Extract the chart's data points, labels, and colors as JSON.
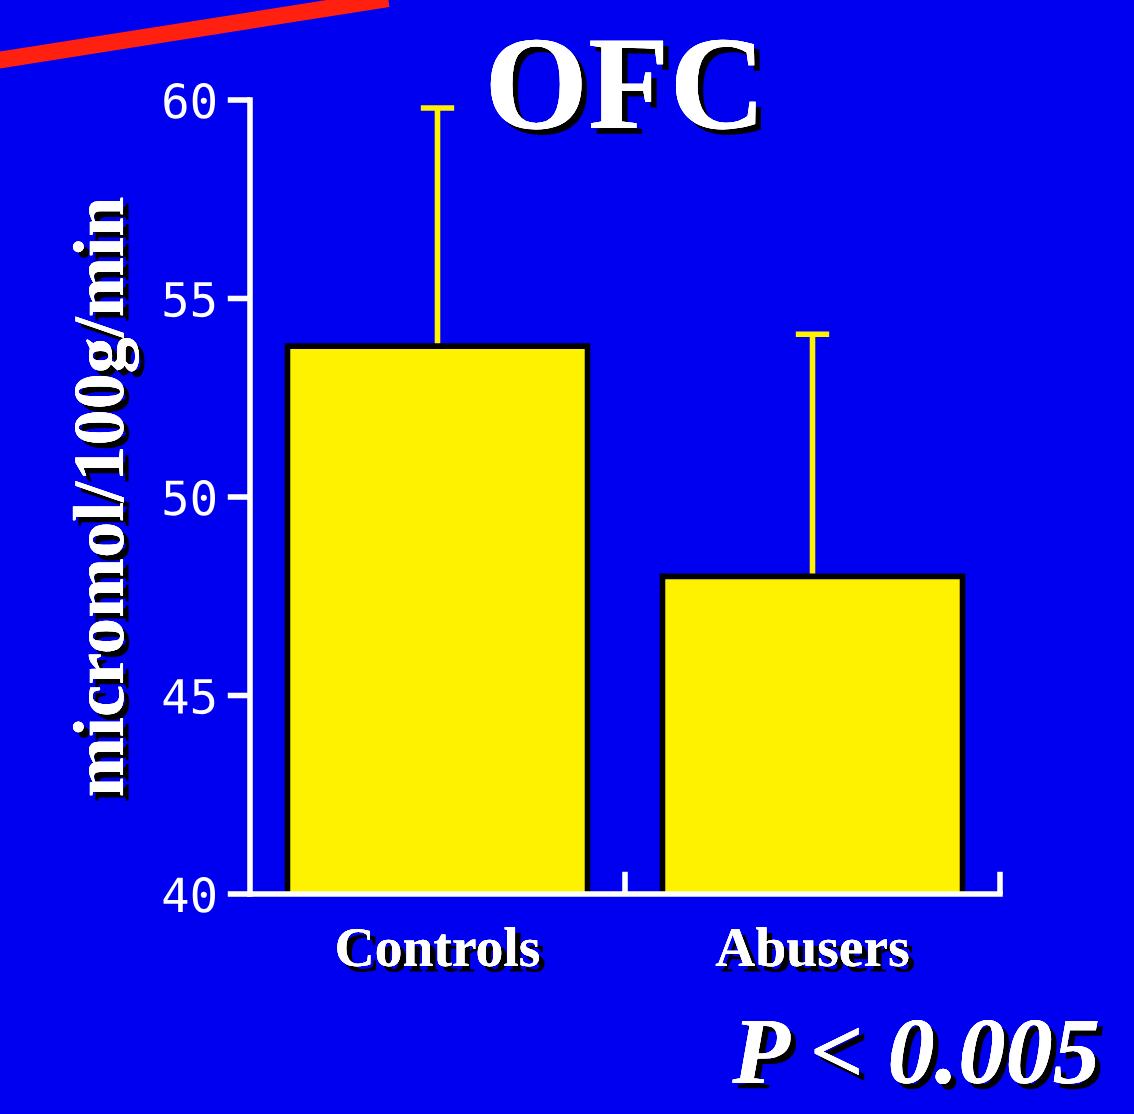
{
  "chart_data": {
    "type": "bar",
    "title": "OFC",
    "ylabel": "micromol/100g/min",
    "categories": [
      "Controls",
      "Abusers"
    ],
    "values": [
      53.8,
      48.0
    ],
    "errors": [
      6.0,
      6.1
    ],
    "color": "#fff200",
    "ylim": [
      40,
      60
    ],
    "yticks": [
      40,
      45,
      50,
      55,
      60
    ],
    "grid": false,
    "annotations": [
      "P < 0.005"
    ]
  }
}
